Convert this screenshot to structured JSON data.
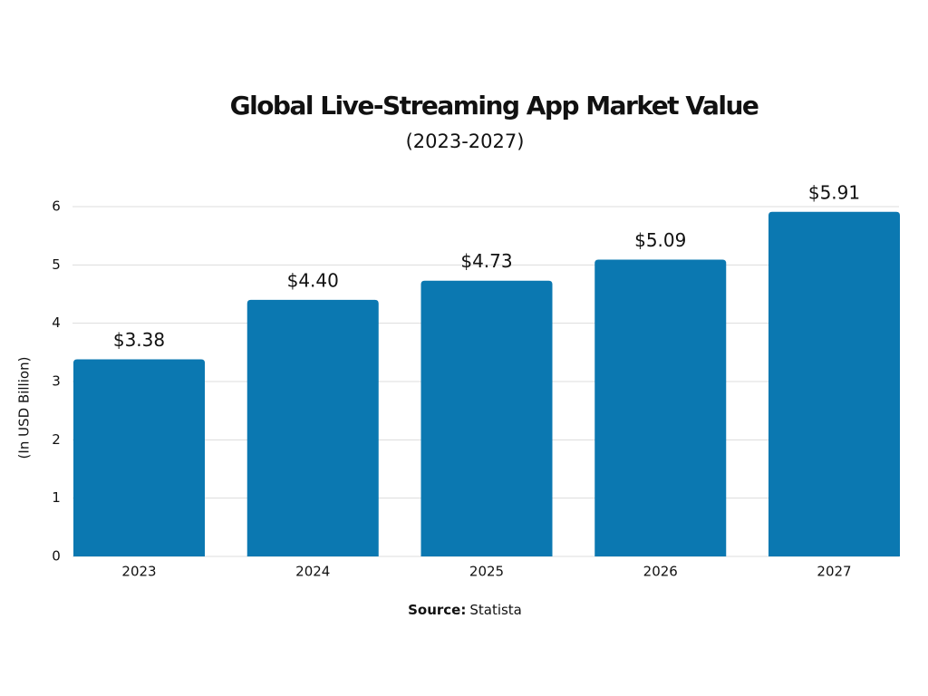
{
  "chart_data": {
    "type": "bar",
    "title": "Global Live-Streaming App Market Value",
    "subtitle": "(2023-2027)",
    "y_label": "(In USD Billion)",
    "source": {
      "label": "Source:",
      "text": "Statista"
    },
    "categories": [
      "2023",
      "2024",
      "2025",
      "2026",
      "2027"
    ],
    "values": [
      3.38,
      4.4,
      4.73,
      5.09,
      5.91
    ],
    "value_labels": [
      "$3.38",
      "$4.40",
      "$4.73",
      "$5.09",
      "$5.91"
    ],
    "color": "#0b78b1",
    "ylim": [
      0,
      6
    ],
    "yticks": [
      0,
      1,
      2,
      3,
      4,
      5,
      6
    ],
    "grid": true
  }
}
